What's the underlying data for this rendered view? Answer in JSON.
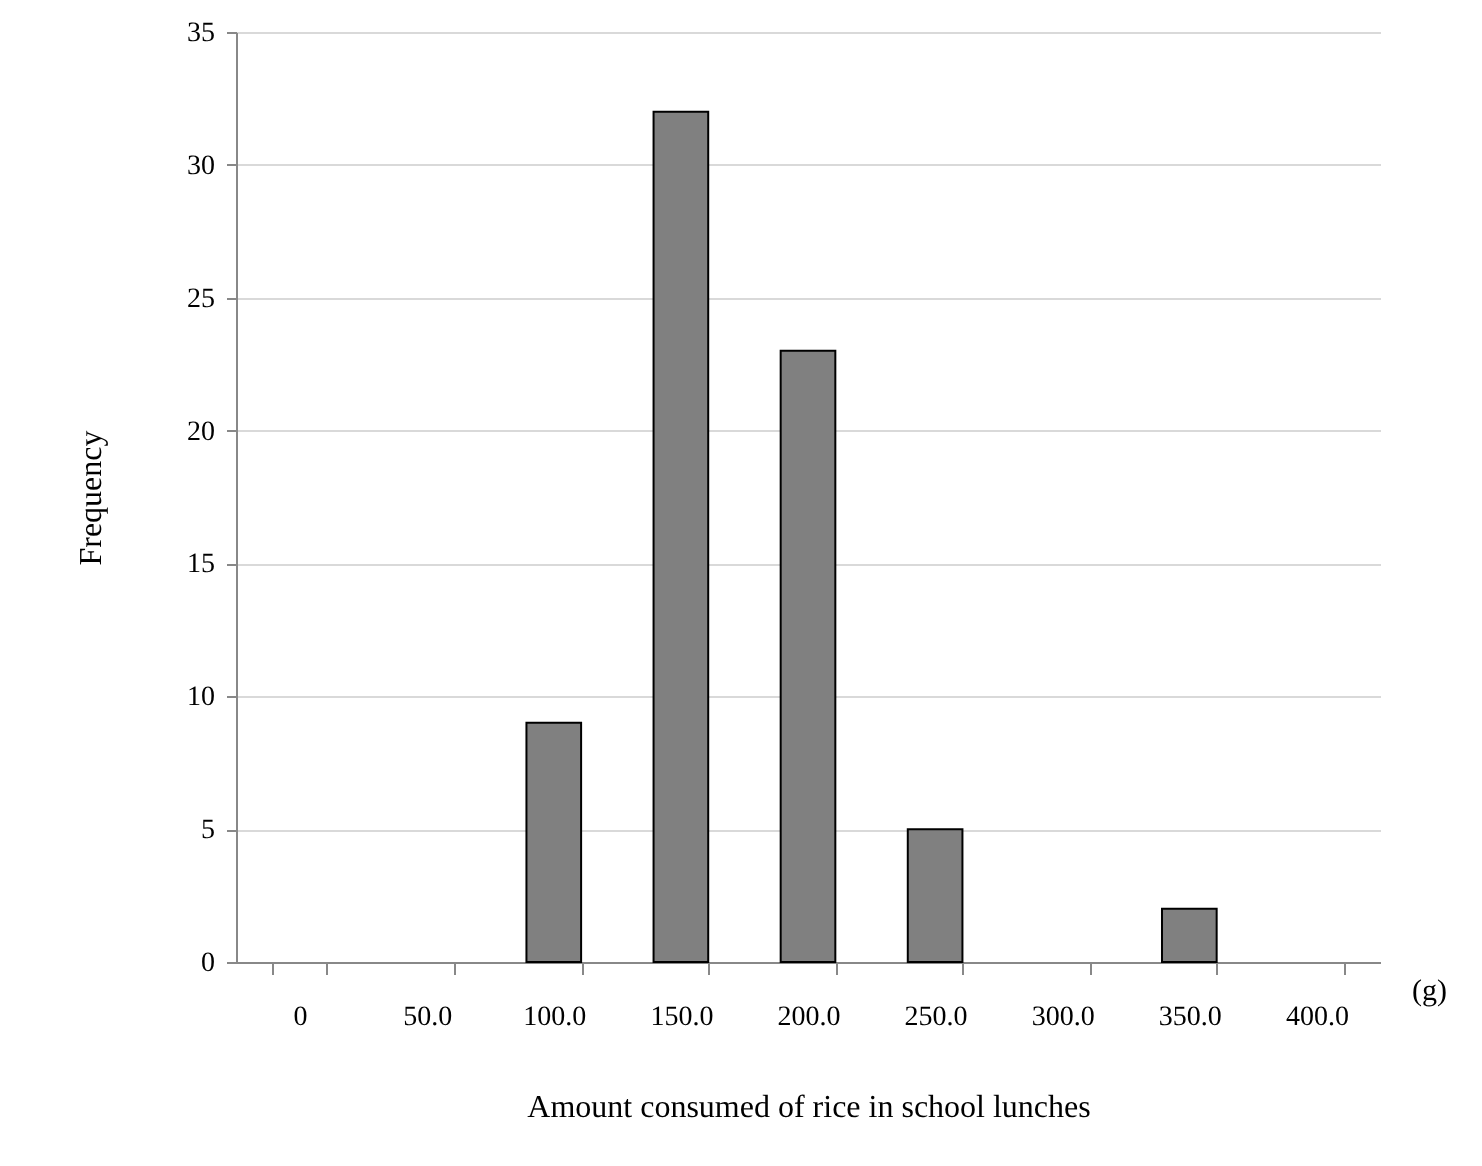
{
  "chart_data": {
    "type": "bar",
    "xlabel": "Amount consumed of  rice in school lunches",
    "ylabel": "Frequency",
    "categories": [
      "0",
      "50.0",
      "100.0",
      "150.0",
      "200.0",
      "250.0",
      "300.0",
      "350.0",
      "400.0"
    ],
    "values": [
      0,
      0,
      9,
      32,
      23,
      5,
      0,
      2,
      0
    ],
    "color": "#808080",
    "ylim": [
      0,
      35
    ],
    "yticks": [
      0,
      5,
      10,
      15,
      20,
      25,
      30,
      35
    ],
    "grid": "y",
    "annotations": [
      "(g)"
    ]
  }
}
